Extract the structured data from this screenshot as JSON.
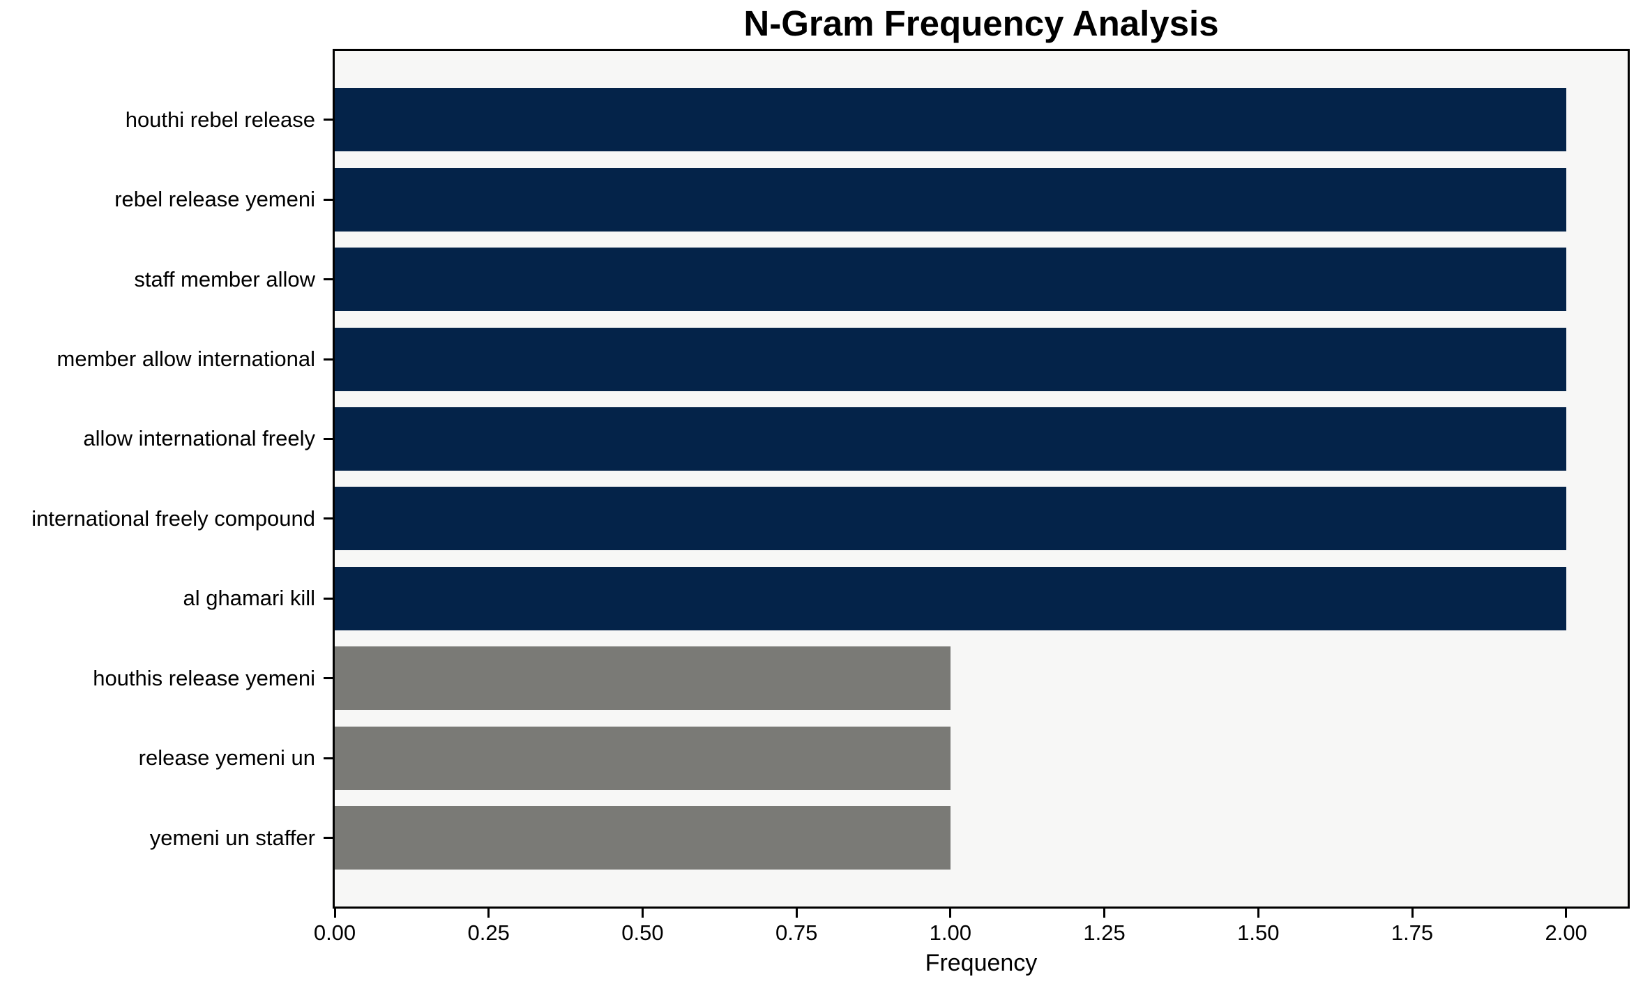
{
  "title": "N-Gram Frequency Analysis",
  "colors": {
    "bar_high": "#042349",
    "bar_low": "#7a7a76",
    "plot_background": "#f7f7f6",
    "spine": "#000000",
    "figure_background": "#ffffff"
  },
  "chart_data": {
    "type": "bar",
    "orientation": "horizontal",
    "title": "N-Gram Frequency Analysis",
    "xlabel": "Frequency",
    "ylabel": "",
    "grid": false,
    "legend": null,
    "xlim": [
      0,
      2.1
    ],
    "categories": [
      "houthi rebel release",
      "rebel release yemeni",
      "staff member allow",
      "member allow international",
      "allow international freely",
      "international freely compound",
      "al ghamari kill",
      "houthis release yemeni",
      "release yemeni un",
      "yemeni un staffer"
    ],
    "values": [
      2,
      2,
      2,
      2,
      2,
      2,
      2,
      1,
      1,
      1
    ],
    "bar_colors": [
      "#042349",
      "#042349",
      "#042349",
      "#042349",
      "#042349",
      "#042349",
      "#042349",
      "#7a7a76",
      "#7a7a76",
      "#7a7a76"
    ],
    "xticks": [
      "0.00",
      "0.25",
      "0.50",
      "0.75",
      "1.00",
      "1.25",
      "1.50",
      "1.75",
      "2.00"
    ],
    "xtick_values": [
      0,
      0.25,
      0.5,
      0.75,
      1.0,
      1.25,
      1.5,
      1.75,
      2.0
    ]
  }
}
